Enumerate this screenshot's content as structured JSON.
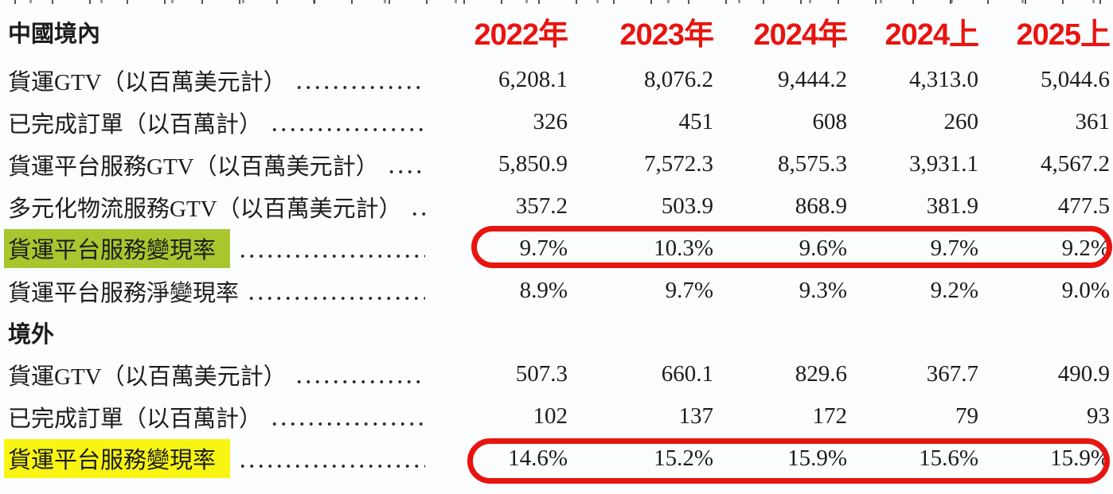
{
  "page": {
    "background": "#fcfdfe",
    "text_color": "#1c1c1c"
  },
  "header": {
    "color": "#e8140f",
    "columns": [
      "2022年",
      "2023年",
      "2024年",
      "2024上",
      "2025上"
    ]
  },
  "sections": [
    {
      "title": "中國境內",
      "rows": [
        {
          "label": "貨運GTV（以百萬美元計）",
          "values": [
            "6,208.1",
            "8,076.2",
            "9,444.2",
            "4,313.0",
            "5,044.6"
          ]
        },
        {
          "label": "已完成訂單（以百萬計）",
          "values": [
            "326",
            "451",
            "608",
            "260",
            "361"
          ]
        },
        {
          "label": "貨運平台服務GTV（以百萬美元計）",
          "values": [
            "5,850.9",
            "7,572.3",
            "8,575.3",
            "3,931.1",
            "4,567.2"
          ]
        },
        {
          "label": "多元化物流服務GTV（以百萬美元計）",
          "values": [
            "357.2",
            "503.9",
            "868.9",
            "381.9",
            "477.5"
          ]
        },
        {
          "label": "貨運平台服務變現率",
          "values": [
            "9.7%",
            "10.3%",
            "9.6%",
            "9.7%",
            "9.2%"
          ],
          "highlight": "green",
          "circled": true
        },
        {
          "label": "貨運平台服務淨變現率",
          "values": [
            "8.9%",
            "9.7%",
            "9.3%",
            "9.2%",
            "9.0%"
          ]
        }
      ]
    },
    {
      "title": "境外",
      "rows": [
        {
          "label": "貨運GTV（以百萬美元計）",
          "values": [
            "507.3",
            "660.1",
            "829.6",
            "367.7",
            "490.9"
          ]
        },
        {
          "label": "已完成訂單（以百萬計）",
          "values": [
            "102",
            "137",
            "172",
            "79",
            "93"
          ]
        },
        {
          "label": "貨運平台服務變現率",
          "values": [
            "14.6%",
            "15.2%",
            "15.9%",
            "15.6%",
            "15.9%"
          ],
          "highlight": "yellow",
          "circled": true
        }
      ]
    }
  ],
  "annotations": {
    "highlight_green": "#a9c62e",
    "highlight_yellow": "#f8f513",
    "circle_red": "#e8140f",
    "circled_row_labels": [
      "貨運平台服務變現率"
    ]
  }
}
